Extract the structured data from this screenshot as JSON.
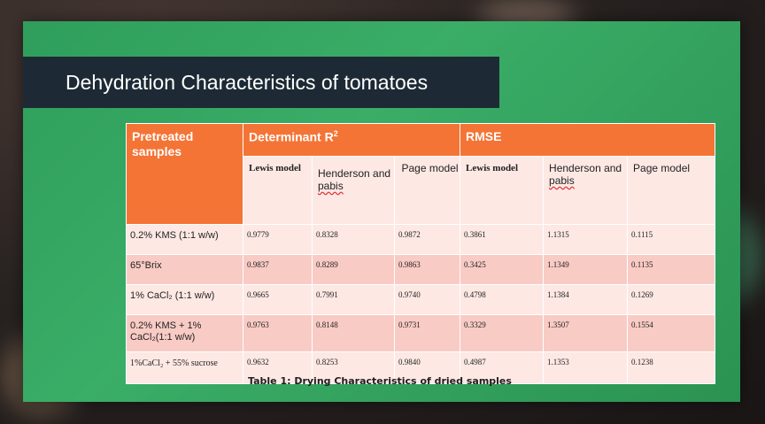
{
  "slide": {
    "title": "Dehydration Characteristics of tomatoes",
    "caption": "Table 1: Drying Characteristics of dried samples"
  },
  "table": {
    "corner_header": "Pretreated samples",
    "group_headers": [
      "Determinant R²",
      "RMSE"
    ],
    "sub_headers": [
      "Lewis model",
      "Henderson and pabis",
      "Page model",
      "Lewis model",
      "Henderson and pabis",
      "Page model"
    ],
    "rows": [
      {
        "label": "0.2% KMS (1:1 w/w)",
        "values": [
          "0.9779",
          "0.8328",
          "0.9872",
          "0.3861",
          "1.1315",
          "0.1115"
        ]
      },
      {
        "label": "65°Brix",
        "values": [
          "0.9837",
          "0.8289",
          "0.9863",
          "0.3425",
          "1.1349",
          "0.1135"
        ]
      },
      {
        "label": "1% CaCl₂ (1:1 w/w)",
        "values": [
          "0.9665",
          "0.7991",
          "0.9740",
          "0.4798",
          "1.1384",
          "0.1269"
        ]
      },
      {
        "label": "0.2% KMS + 1% CaCl₂(1:1 w/w)",
        "values": [
          "0.9763",
          "0.8148",
          "0.9731",
          "0.3329",
          "1.3507",
          "0.1554"
        ]
      },
      {
        "label": "1%CaCl₂ + 55% sucrose",
        "values": [
          "0.9632",
          "0.8253",
          "0.9840",
          "0.4987",
          "1.1353",
          "0.1238"
        ]
      }
    ]
  },
  "colors": {
    "slide_green": "#3aad67",
    "title_bar": "#1d2a35",
    "header_orange": "#f47436",
    "row_light": "#fde8e4",
    "row_dark": "#f9cbc5"
  }
}
